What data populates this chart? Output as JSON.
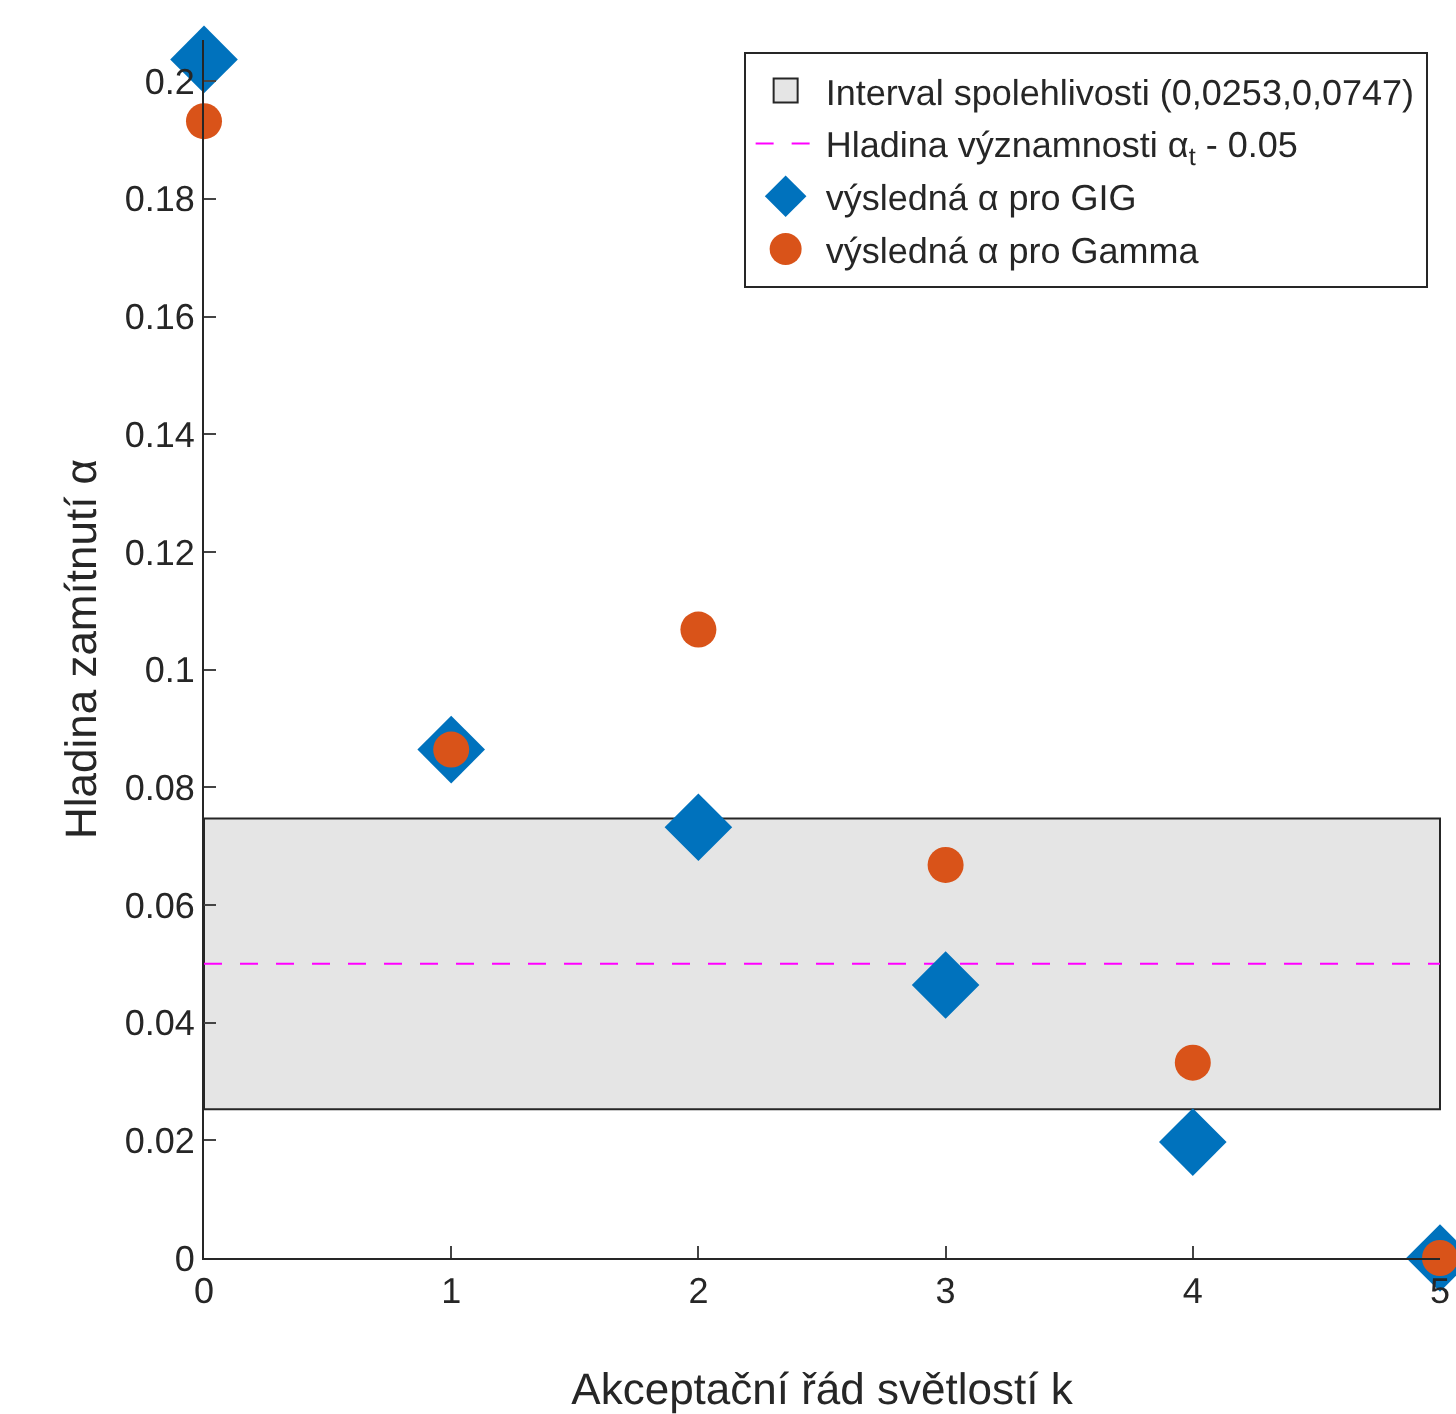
{
  "chart_data": {
    "type": "scatter",
    "xlabel": "Akceptační řád světlostí k",
    "ylabel": "Hladina zamítnutí α",
    "x": [
      0,
      1,
      2,
      3,
      4,
      5
    ],
    "series": [
      {
        "name": "výsledná α pro GIG",
        "color": "#0072bd",
        "marker": "diamond",
        "values": [
          0.2037,
          0.0864,
          0.0732,
          0.0464,
          0.0197,
          0
        ]
      },
      {
        "name": "výsledná α pro Gamma",
        "color": "#d95319",
        "marker": "circle",
        "values": [
          0.1932,
          0.0864,
          0.1068,
          0.0668,
          0.0332,
          0
        ]
      }
    ],
    "bands": [
      {
        "axis": "y",
        "from": 0.0253,
        "to": 0.0747,
        "label": "Interval spolehlivosti (0,0253,0,0747)",
        "color": "#e5e5e5"
      }
    ],
    "ref_lines": [
      {
        "axis": "y",
        "value": 0.05,
        "label": "Hladina významnosti α$_{t}$ - 0.05",
        "color": "#ff00ff",
        "line_style": "dashed"
      }
    ],
    "xlim": [
      0,
      5
    ],
    "xticks": [
      0,
      1,
      2,
      3,
      4,
      5
    ],
    "ylim": [
      0,
      0.207
    ],
    "yticks": [
      0,
      0.02,
      0.04,
      0.06,
      0.08,
      0.1,
      0.12,
      0.14,
      0.16,
      0.18,
      0.2
    ],
    "grid": false,
    "legend": "top right"
  }
}
